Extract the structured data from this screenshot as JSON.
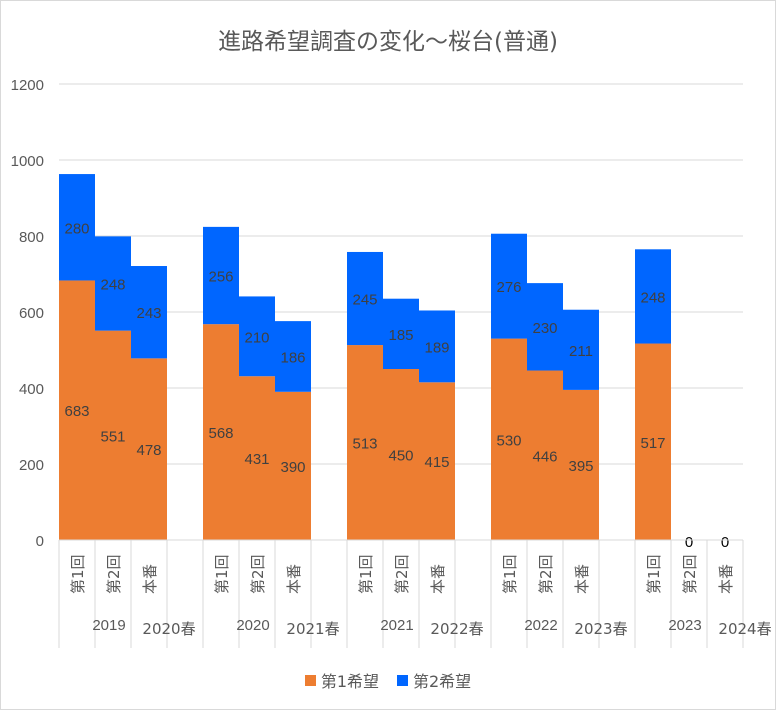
{
  "chart_data": {
    "type": "bar",
    "stacked": true,
    "title": "進路希望調査の変化～桜台(普通)",
    "xlabel": "",
    "ylabel": "",
    "ylim": [
      0,
      1200
    ],
    "yticks": [
      0,
      200,
      400,
      600,
      800,
      1000,
      1200
    ],
    "grid": true,
    "legend_position": "bottom",
    "groups": [
      {
        "year": "2019",
        "spring": "2020春",
        "categories": [
          "第1回",
          "第2回",
          "本番"
        ]
      },
      {
        "year": "2020",
        "spring": "2021春",
        "categories": [
          "第1回",
          "第2回",
          "本番"
        ]
      },
      {
        "year": "2021",
        "spring": "2022春",
        "categories": [
          "第1回",
          "第2回",
          "本番"
        ]
      },
      {
        "year": "2022",
        "spring": "2023春",
        "categories": [
          "第1回",
          "第2回",
          "本番"
        ]
      },
      {
        "year": "2023",
        "spring": "2024春",
        "categories": [
          "第1回",
          "第2回",
          "本番"
        ]
      }
    ],
    "series": [
      {
        "name": "第1希望",
        "color": "#ED7D31",
        "values": [
          [
            683,
            551,
            478
          ],
          [
            568,
            431,
            390
          ],
          [
            513,
            450,
            415
          ],
          [
            530,
            446,
            395
          ],
          [
            517,
            0,
            0
          ]
        ]
      },
      {
        "name": "第2希望",
        "color": "#0066FF",
        "values": [
          [
            280,
            248,
            243
          ],
          [
            256,
            210,
            186
          ],
          [
            245,
            185,
            189
          ],
          [
            276,
            230,
            211
          ],
          [
            248,
            0,
            0
          ]
        ]
      }
    ],
    "label_colors": {
      "text": "#404040",
      "axis": "#595959",
      "grid": "#d9d9d9"
    }
  }
}
